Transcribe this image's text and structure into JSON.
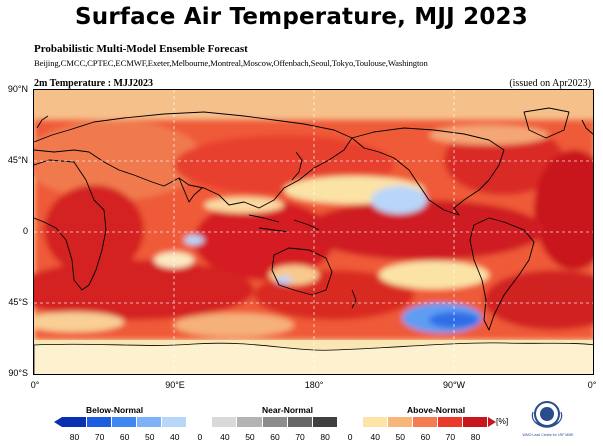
{
  "header": {
    "title": "Surface Air Temperature, MJJ 2023",
    "subtitle": "Probabilistic Multi-Model Ensemble Forecast",
    "centres": "Beijing,CMCC,CPTEC,ECMWF,Exeter,Melbourne,Montreal,Moscow,Offenbach,Seoul,Tokyo,Toulouse,Washington"
  },
  "map": {
    "label": "2m Temperature : MJJ2023",
    "issued": "(issued on Apr2023)",
    "lat_ticks": [
      "90°N",
      "45°N",
      "0",
      "45°S",
      "90°S"
    ],
    "lon_ticks": [
      "0°",
      "90°E",
      "180°",
      "90°W",
      "0°"
    ]
  },
  "legend": {
    "below_label": "Below-Normal",
    "near_label": "Near-Normal",
    "above_label": "Above-Normal",
    "unit": "[%]",
    "below_ticks": [
      "80",
      "70",
      "60",
      "50",
      "40"
    ],
    "near_ticks": [
      "0",
      "40",
      "50",
      "60",
      "70",
      "80"
    ],
    "above_ticks": [
      "0",
      "40",
      "50",
      "60",
      "70",
      "80"
    ],
    "below_colors": [
      "#0a2fb0",
      "#1f5de0",
      "#3f86f0",
      "#7db2f6",
      "#b8d6fa"
    ],
    "near_colors": [
      "#ffffff",
      "#d9d9d9",
      "#b3b3b3",
      "#8c8c8c",
      "#666666",
      "#404040"
    ],
    "above_colors": [
      "#ffffff",
      "#fce3a6",
      "#f9b67a",
      "#f57c52",
      "#ea3a2c",
      "#c8161d"
    ]
  },
  "logo": {
    "name": "wmo-logo-icon",
    "text": "WMO Lead Centre for LRF MME"
  }
}
